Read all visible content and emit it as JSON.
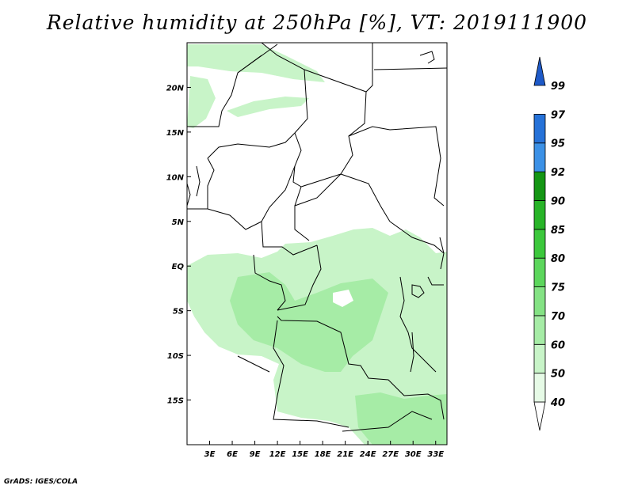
{
  "title": "Relative humidity at 250hPa [%], VT: 2019111900",
  "credit": "GrADS: IGES/COLA",
  "map": {
    "lon_range": [
      0,
      34.5
    ],
    "lat_range": [
      -20,
      25
    ],
    "lon_ticks": [
      "3E",
      "6E",
      "9E",
      "12E",
      "15E",
      "18E",
      "21E",
      "24E",
      "27E",
      "30E",
      "33E"
    ],
    "lon_tick_values": [
      3,
      6,
      9,
      12,
      15,
      18,
      21,
      24,
      27,
      30,
      33
    ],
    "lat_ticks": [
      "20N",
      "15N",
      "10N",
      "5N",
      "EQ",
      "5S",
      "10S",
      "15S"
    ],
    "lat_tick_values": [
      20,
      15,
      10,
      5,
      0,
      -5,
      -10,
      -15
    ]
  },
  "colorbar": {
    "levels": [
      "99",
      "97",
      "95",
      "92",
      "90",
      "85",
      "80",
      "75",
      "70",
      "60",
      "50",
      "40"
    ],
    "colors": [
      "#ffffff",
      "#e6fae6",
      "#c8f4c8",
      "#a6eca6",
      "#84e284",
      "#5cd65c",
      "#3cc83c",
      "#28b428",
      "#149614",
      "#3c91e6",
      "#2672d8",
      "#1e5ac8"
    ]
  }
}
